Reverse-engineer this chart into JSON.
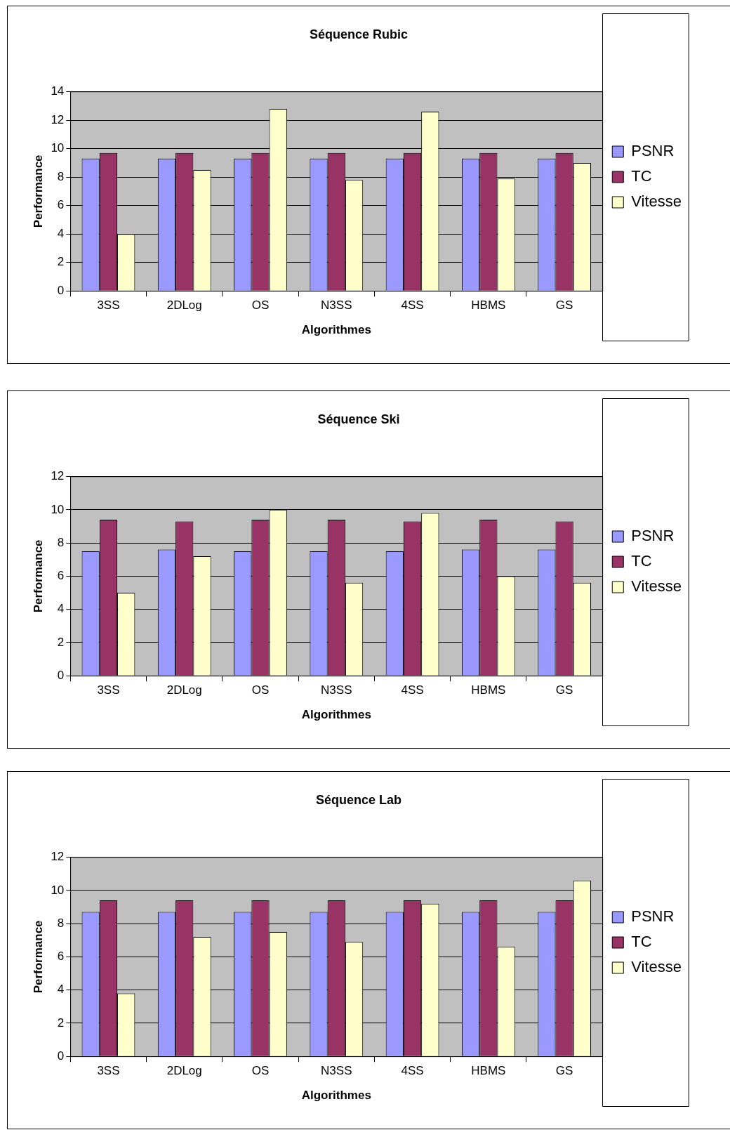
{
  "chart_data": [
    {
      "type": "bar",
      "title": "Séquence Rubic",
      "xlabel": "Algorithmes",
      "ylabel": "Performance",
      "categories": [
        "3SS",
        "2DLog",
        "OS",
        "N3SS",
        "4SS",
        "HBMS",
        "GS"
      ],
      "ylim": [
        0,
        14
      ],
      "yticks": [
        0,
        2,
        4,
        6,
        8,
        10,
        12,
        14
      ],
      "grid": "y",
      "legend": "right",
      "series": [
        {
          "name": "PSNR",
          "color": "#9999ff",
          "values": [
            9.3,
            9.3,
            9.3,
            9.3,
            9.3,
            9.3,
            9.3
          ]
        },
        {
          "name": "TC",
          "color": "#993366",
          "values": [
            9.7,
            9.7,
            9.7,
            9.7,
            9.7,
            9.7,
            9.7
          ]
        },
        {
          "name": "Vitesse",
          "color": "#ffffcc",
          "values": [
            4.0,
            8.5,
            12.8,
            7.8,
            12.6,
            7.9,
            9.0
          ]
        }
      ]
    },
    {
      "type": "bar",
      "title": "Séquence Ski",
      "xlabel": "Algorithmes",
      "ylabel": "Performance",
      "categories": [
        "3SS",
        "2DLog",
        "OS",
        "N3SS",
        "4SS",
        "HBMS",
        "GS"
      ],
      "ylim": [
        0,
        12
      ],
      "yticks": [
        0,
        2,
        4,
        6,
        8,
        10,
        12
      ],
      "grid": "y",
      "legend": "right",
      "series": [
        {
          "name": "PSNR",
          "color": "#9999ff",
          "values": [
            7.5,
            7.6,
            7.5,
            7.5,
            7.5,
            7.6,
            7.6
          ]
        },
        {
          "name": "TC",
          "color": "#993366",
          "values": [
            9.4,
            9.3,
            9.4,
            9.4,
            9.3,
            9.4,
            9.3
          ]
        },
        {
          "name": "Vitesse",
          "color": "#ffffcc",
          "values": [
            5.0,
            7.2,
            10.0,
            5.6,
            9.8,
            6.0,
            5.6
          ]
        }
      ]
    },
    {
      "type": "bar",
      "title": "Séquence Lab",
      "xlabel": "Algorithmes",
      "ylabel": "Performance",
      "categories": [
        "3SS",
        "2DLog",
        "OS",
        "N3SS",
        "4SS",
        "HBMS",
        "GS"
      ],
      "ylim": [
        0,
        12
      ],
      "yticks": [
        0,
        2,
        4,
        6,
        8,
        10,
        12
      ],
      "grid": "y",
      "legend": "right",
      "series": [
        {
          "name": "PSNR",
          "color": "#9999ff",
          "values": [
            8.7,
            8.7,
            8.7,
            8.7,
            8.7,
            8.7,
            8.7
          ]
        },
        {
          "name": "TC",
          "color": "#993366",
          "values": [
            9.4,
            9.4,
            9.4,
            9.4,
            9.4,
            9.4,
            9.4
          ]
        },
        {
          "name": "Vitesse",
          "color": "#ffffcc",
          "values": [
            3.8,
            7.2,
            7.5,
            6.9,
            9.2,
            6.6,
            10.6
          ]
        }
      ]
    }
  ]
}
